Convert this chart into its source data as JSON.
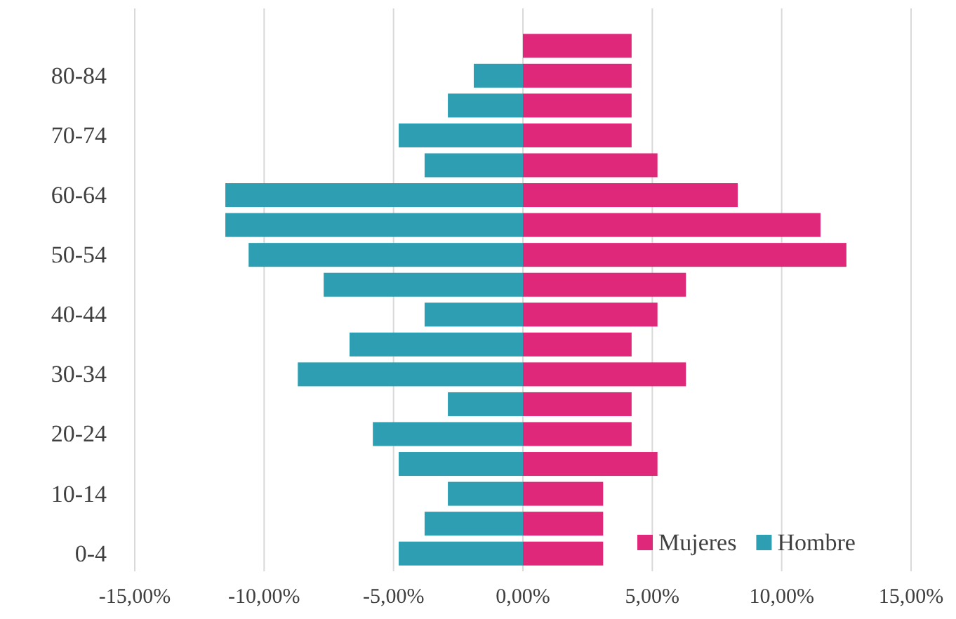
{
  "chart_data": {
    "type": "bar",
    "orientation": "horizontal",
    "stacked": true,
    "categories": [
      null,
      "80-84",
      null,
      "70-74",
      null,
      "60-64",
      null,
      "50-54",
      null,
      "40-44",
      null,
      "30-34",
      null,
      "20-24",
      null,
      "10-14",
      null,
      "0-4"
    ],
    "series": [
      {
        "name": "Mujeres",
        "color": "#e0287a",
        "values": [
          4.2,
          4.2,
          4.2,
          4.2,
          5.2,
          8.3,
          11.5,
          12.5,
          6.3,
          5.2,
          4.2,
          6.3,
          4.2,
          4.2,
          5.2,
          3.1,
          3.1,
          3.1
        ]
      },
      {
        "name": "Hombre",
        "color": "#2e9fb2",
        "values": [
          null,
          -1.9,
          -2.9,
          -4.8,
          -3.8,
          -11.5,
          -11.5,
          -10.6,
          -7.7,
          -3.8,
          -6.7,
          -8.7,
          -2.9,
          -5.8,
          -4.8,
          -2.9,
          -3.8,
          -4.8
        ]
      }
    ],
    "xlim": [
      -15,
      15
    ],
    "xticks": [
      {
        "value": -15,
        "label": "-15,00%"
      },
      {
        "value": -10,
        "label": "-10,00%"
      },
      {
        "value": -5,
        "label": "-5,00%"
      },
      {
        "value": 0,
        "label": "0,00%"
      },
      {
        "value": 5,
        "label": "5,00%"
      },
      {
        "value": 10,
        "label": "10,00%"
      },
      {
        "value": 15,
        "label": "15,00%"
      }
    ],
    "grid": "x",
    "legend": "bottom right"
  }
}
